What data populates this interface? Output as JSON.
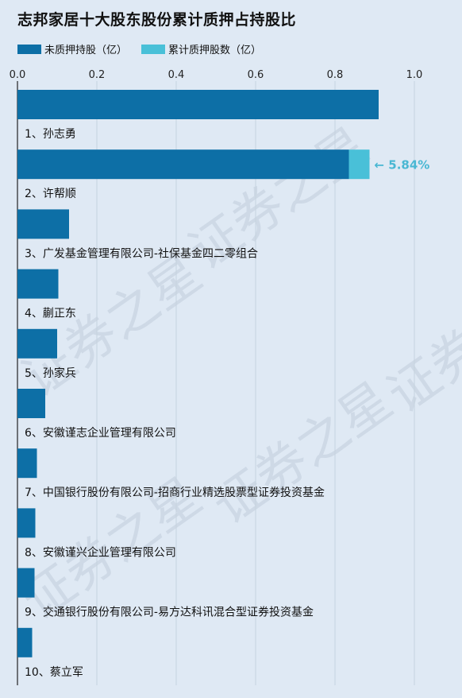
{
  "title": "志邦家居十大股东股份累计质押占持股比",
  "legend": {
    "unpledged_label": "未质押持股（亿）",
    "pledged_label": "累计质押股数（亿）"
  },
  "colors": {
    "unpledged": "#0d6fa6",
    "pledged": "#49c0d8",
    "annotation": "#49b7d3",
    "background": "#dfe9f4"
  },
  "watermark": "证券之星",
  "chart_data": {
    "type": "bar",
    "orientation": "horizontal",
    "stacked": true,
    "xlim": [
      0,
      1.0
    ],
    "xticks": [
      "0.0",
      "0.2",
      "0.4",
      "0.6",
      "0.8",
      "1.0"
    ],
    "xtick_values": [
      0,
      0.2,
      0.4,
      0.6,
      0.8,
      1.0
    ],
    "categories": [
      "1、孙志勇",
      "2、许帮顺",
      "3、广发基金管理有限公司-社保基金四二零组合",
      "4、蒯正东",
      "5、孙家兵",
      "6、安徽谨志企业管理有限公司",
      "7、中国银行股份有限公司-招商行业精选股票型证券投资基金",
      "8、安徽谨兴企业管理有限公司",
      "9、交通银行股份有限公司-易方达科讯混合型证券投资基金",
      "10、蔡立军"
    ],
    "series": [
      {
        "name": "未质押持股（亿）",
        "values": [
          0.91,
          0.835,
          0.13,
          0.103,
          0.1,
          0.07,
          0.049,
          0.045,
          0.043,
          0.037
        ]
      },
      {
        "name": "累计质押股数（亿）",
        "values": [
          0,
          0.052,
          0,
          0,
          0,
          0,
          0,
          0,
          0,
          0
        ]
      }
    ],
    "annotations": [
      {
        "category_index": 1,
        "text": "← 5.84%"
      }
    ],
    "grid": true
  }
}
